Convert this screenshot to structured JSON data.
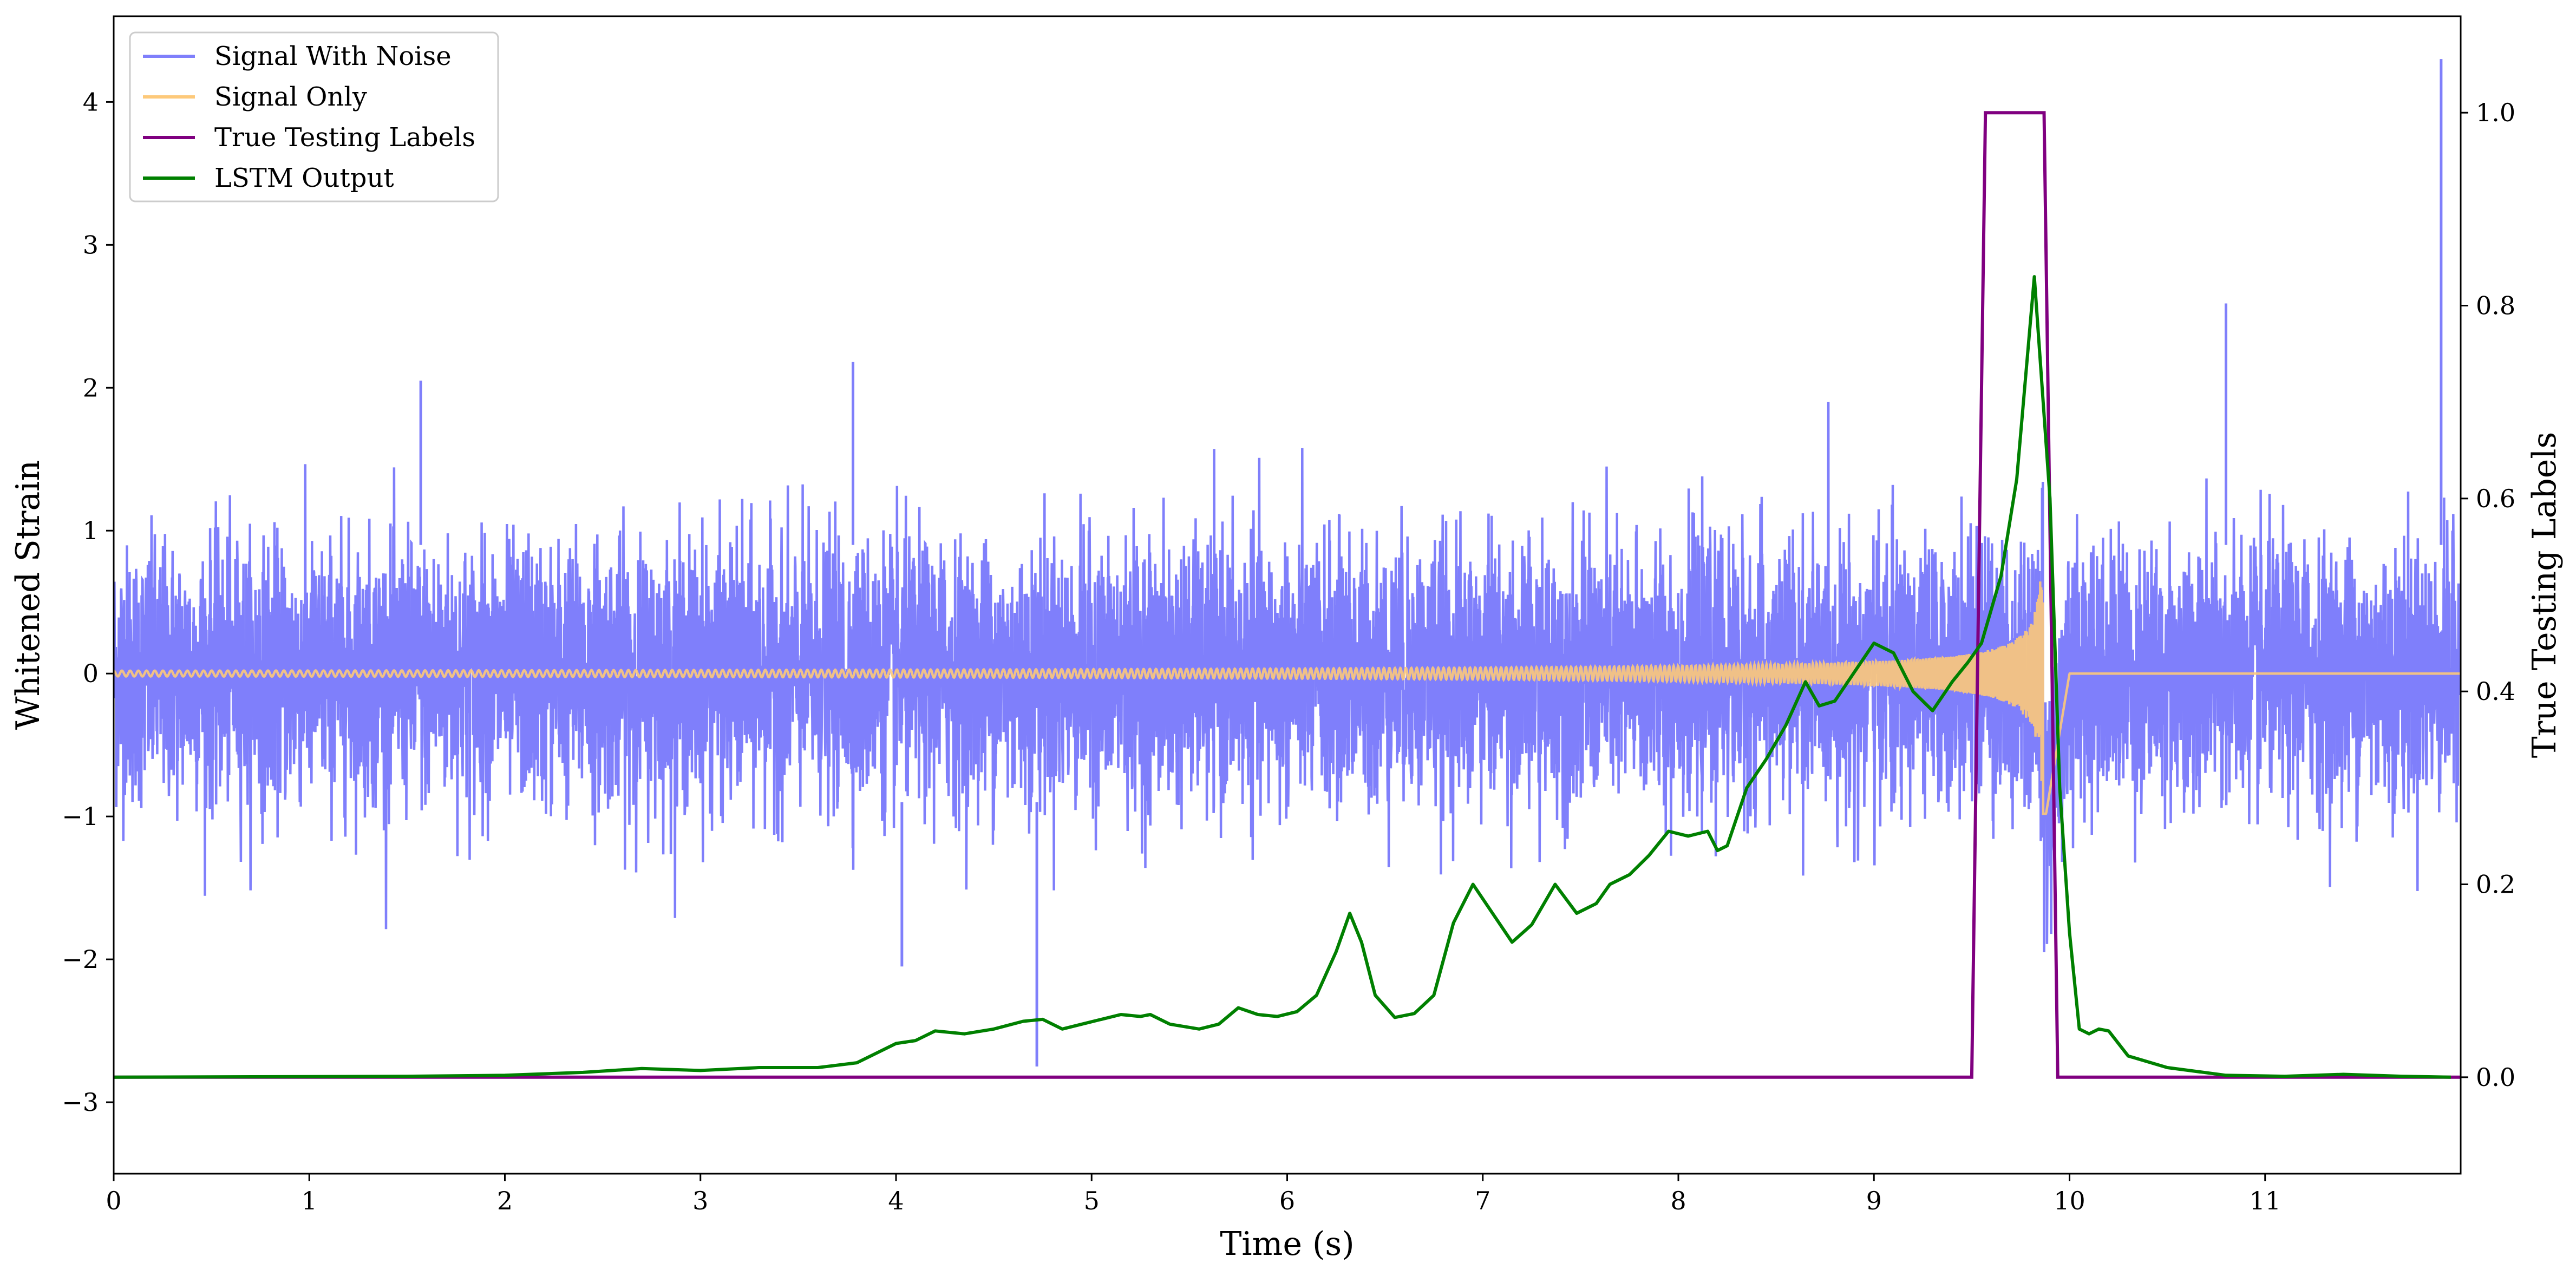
{
  "chart_data": {
    "type": "line",
    "title": "",
    "xlabel": "Time (s)",
    "ylabel": "Whitened Strain",
    "y2label": "True Testing Labels",
    "xlim": [
      0,
      12
    ],
    "ylim": [
      -3.5,
      4.6
    ],
    "y2lim": [
      -0.1,
      1.1
    ],
    "xticks": [
      0,
      1,
      2,
      3,
      4,
      5,
      6,
      7,
      8,
      9,
      10,
      11
    ],
    "yticks": [
      -3,
      -2,
      -1,
      0,
      1,
      2,
      3,
      4
    ],
    "y2ticks": [
      0.0,
      0.2,
      0.4,
      0.6,
      0.8,
      1.0
    ],
    "ytick_labels": [
      "−3",
      "−2",
      "−1",
      "0",
      "1",
      "2",
      "3",
      "4"
    ],
    "y2tick_labels": [
      "0.0",
      "0.2",
      "0.4",
      "0.6",
      "0.8",
      "1.0"
    ],
    "legend_position": "top-left",
    "grid": false,
    "series": [
      {
        "name": "Signal With Noise",
        "axis": "left",
        "color": "#7f7ffb",
        "kind": "noise",
        "approx_std": 0.45,
        "notable_peaks": [
          {
            "x": 1.57,
            "y": 2.05
          },
          {
            "x": 3.78,
            "y": 2.18
          },
          {
            "x": 10.8,
            "y": 2.59
          },
          {
            "x": 4.72,
            "y": -2.75
          },
          {
            "x": 4.03,
            "y": -2.05
          },
          {
            "x": 11.9,
            "y": 4.3
          }
        ]
      },
      {
        "name": "Signal Only",
        "axis": "left",
        "color": "#fdc97a",
        "kind": "chirp",
        "start_amplitude": 0.02,
        "peak_amplitude": 1.0,
        "merger_time": 9.88
      },
      {
        "name": "True Testing Labels",
        "axis": "right",
        "color": "#800080",
        "x": [
          0,
          9.5,
          9.57,
          9.87,
          9.94,
          12
        ],
        "values": [
          0,
          0,
          1,
          1,
          0,
          0
        ]
      },
      {
        "name": "LSTM Output",
        "axis": "right",
        "color": "#008000",
        "x": [
          0,
          1.5,
          2.0,
          2.4,
          2.7,
          3.0,
          3.3,
          3.6,
          3.8,
          3.9,
          4.0,
          4.1,
          4.2,
          4.35,
          4.5,
          4.65,
          4.75,
          4.85,
          4.95,
          5.05,
          5.15,
          5.25,
          5.3,
          5.4,
          5.55,
          5.65,
          5.75,
          5.85,
          5.95,
          6.05,
          6.15,
          6.25,
          6.32,
          6.38,
          6.45,
          6.55,
          6.65,
          6.75,
          6.85,
          6.95,
          7.05,
          7.15,
          7.25,
          7.37,
          7.48,
          7.58,
          7.65,
          7.75,
          7.85,
          7.95,
          8.05,
          8.15,
          8.2,
          8.25,
          8.35,
          8.45,
          8.55,
          8.65,
          8.72,
          8.8,
          8.9,
          9.0,
          9.1,
          9.2,
          9.3,
          9.4,
          9.48,
          9.55,
          9.65,
          9.73,
          9.82,
          9.9,
          9.95,
          10.0,
          10.05,
          10.1,
          10.15,
          10.2,
          10.3,
          10.5,
          10.8,
          11.1,
          11.4,
          11.7,
          11.95
        ],
        "values": [
          0.0,
          0.001,
          0.002,
          0.005,
          0.009,
          0.007,
          0.01,
          0.01,
          0.015,
          0.025,
          0.035,
          0.038,
          0.048,
          0.045,
          0.05,
          0.058,
          0.06,
          0.05,
          0.055,
          0.06,
          0.065,
          0.063,
          0.065,
          0.055,
          0.05,
          0.055,
          0.072,
          0.065,
          0.063,
          0.068,
          0.085,
          0.13,
          0.17,
          0.14,
          0.085,
          0.062,
          0.066,
          0.085,
          0.16,
          0.2,
          0.17,
          0.14,
          0.158,
          0.2,
          0.17,
          0.18,
          0.2,
          0.21,
          0.23,
          0.255,
          0.25,
          0.255,
          0.235,
          0.24,
          0.3,
          0.33,
          0.365,
          0.41,
          0.385,
          0.39,
          0.42,
          0.45,
          0.44,
          0.4,
          0.38,
          0.41,
          0.43,
          0.45,
          0.52,
          0.62,
          0.83,
          0.6,
          0.3,
          0.15,
          0.05,
          0.045,
          0.05,
          0.048,
          0.022,
          0.01,
          0.002,
          0.001,
          0.003,
          0.001,
          0.0
        ]
      }
    ]
  }
}
